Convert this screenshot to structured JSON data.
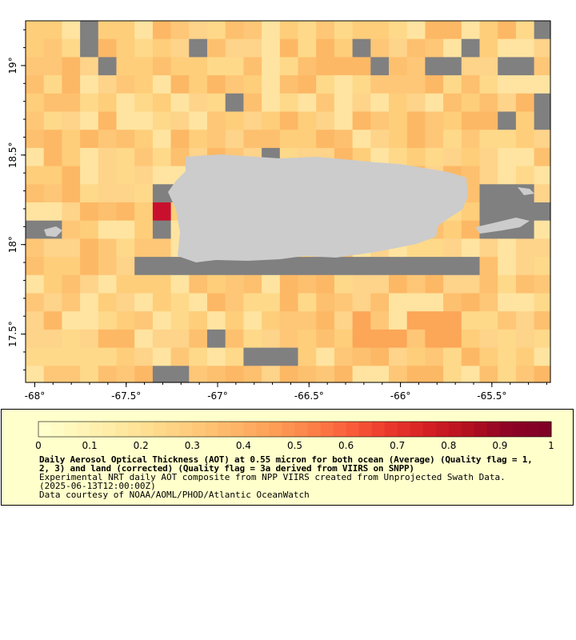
{
  "map": {
    "longitude_ticks": [
      "-68°",
      "-67.5°",
      "-67°",
      "-66.5°",
      "-66°",
      "-65.5°"
    ],
    "latitude_ticks": [
      "19°",
      "18.5°",
      "18°",
      "17.5°"
    ],
    "longitude_range": [
      -68.05,
      -65.18
    ],
    "latitude_range": [
      17.23,
      19.25
    ],
    "missing_color": "#808080",
    "land_color": "#cccccc"
  },
  "colorbar": {
    "tick_labels": [
      "0",
      "0.1",
      "0.2",
      "0.3",
      "0.4",
      "0.5",
      "0.6",
      "0.7",
      "0.8",
      "0.9",
      "1"
    ],
    "colors": [
      "#ffffcc",
      "#fff4b6",
      "#fee89f",
      "#fed98a",
      "#fec777",
      "#feb466",
      "#fd9d56",
      "#fc7f48",
      "#f95b3a",
      "#ea372b",
      "#d31f24",
      "#b3111f",
      "#8e0326",
      "#800026"
    ]
  },
  "caption": {
    "title_line1": "Daily Aerosol Optical Thickness (AOT) at 0.55 micron for both ocean (Average) (Quality flag = 1,",
    "title_line2": "2, 3) and land (corrected) (Quality flag = 3a derived from VIIRS on SNPP)",
    "line3": "Experimental NRT daily AOT composite from NPP VIIRS created from Unprojected Swath Data.",
    "line4": "(2025-06-13T12:00:00Z)",
    "line5": "Data courtesy of NOAA/AOML/PHOD/Atlantic OceanWatch"
  }
}
